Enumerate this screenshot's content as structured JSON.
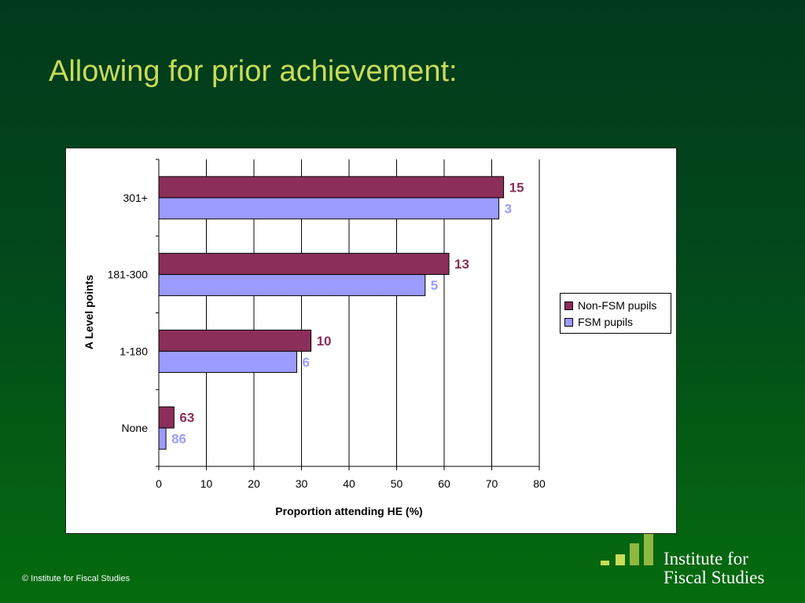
{
  "slide": {
    "title": "Allowing for prior achievement:",
    "copyright": "© Institute for Fiscal Studies",
    "logo": {
      "line1": "Institute for",
      "line2": "Fiscal Studies"
    }
  },
  "colors": {
    "non_fsm": "#8b2f5a",
    "fsm": "#9b9bff",
    "accent": "#c8dc5a"
  },
  "chart_data": {
    "type": "bar",
    "orientation": "horizontal",
    "categories": [
      "None",
      "1-180",
      "181-300",
      "301+"
    ],
    "series": [
      {
        "name": "Non-FSM pupils",
        "color": "#8b2f5a",
        "values": [
          3.2,
          32,
          61,
          72.5
        ],
        "labels": [
          "63",
          "10",
          "13",
          "15"
        ]
      },
      {
        "name": "FSM pupils",
        "color": "#9b9bff",
        "values": [
          1.5,
          29,
          56,
          71.5
        ],
        "labels": [
          "86",
          "6",
          "5",
          "3"
        ]
      }
    ],
    "xlabel": "Proportion attending HE (%)",
    "ylabel": "A Level points",
    "xlim": [
      0,
      80
    ],
    "xticks": [
      0,
      10,
      20,
      30,
      40,
      50,
      60,
      70,
      80
    ],
    "grid": "vertical",
    "legend": "right"
  }
}
